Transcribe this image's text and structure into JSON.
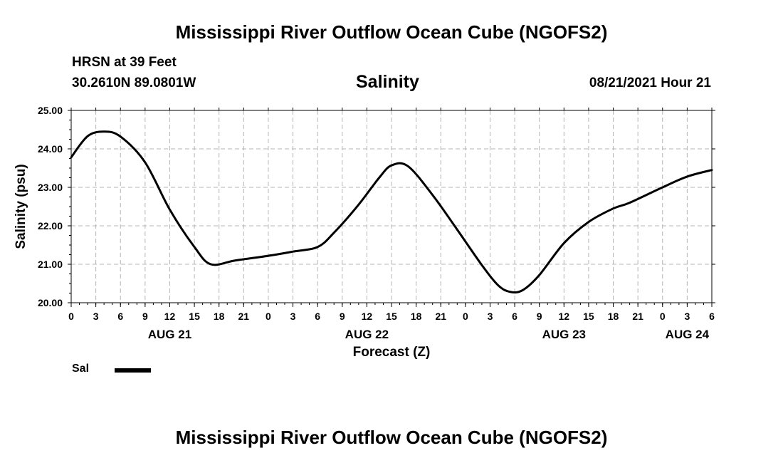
{
  "header": {
    "title": "Mississippi River Outflow Ocean Cube (NGOFS2)",
    "station": "HRSN at 39 Feet",
    "coords": "30.2610N  89.0801W",
    "datetime": "08/21/2021 Hour 21"
  },
  "footer": {
    "title": "Mississippi River Outflow Ocean Cube (NGOFS2)"
  },
  "chart_data": {
    "type": "line",
    "title": "Salinity",
    "ylabel": "Salinity (psu)",
    "xlabel": "Forecast (Z)",
    "ylim": [
      20.0,
      25.0
    ],
    "y_ticks": [
      "20.00",
      "21.00",
      "22.00",
      "23.00",
      "24.00",
      "25.00"
    ],
    "x_range_hours": [
      0,
      78
    ],
    "x_tick_labels": [
      "0",
      "3",
      "6",
      "9",
      "12",
      "15",
      "18",
      "21",
      "0",
      "3",
      "6",
      "9",
      "12",
      "15",
      "18",
      "21",
      "0",
      "3",
      "6",
      "9",
      "12",
      "15",
      "18",
      "21",
      "0",
      "3",
      "6"
    ],
    "date_labels": [
      {
        "label": "AUG 21",
        "hour": 12
      },
      {
        "label": "AUG 22",
        "hour": 36
      },
      {
        "label": "AUG 23",
        "hour": 60
      },
      {
        "label": "AUG 24",
        "hour": 75
      }
    ],
    "grid": true,
    "legend": {
      "position": "bottom-left",
      "entries": [
        "Sal"
      ]
    },
    "series": [
      {
        "name": "Sal",
        "color": "#000000",
        "x": [
          0,
          2,
          4,
          6,
          9,
          12,
          15,
          17,
          20,
          24,
          27,
          30,
          32,
          35,
          37.5,
          39,
          41,
          44,
          47,
          50,
          52,
          53.5,
          55,
          57,
          60,
          63,
          66,
          68,
          72,
          75,
          78
        ],
        "values": [
          23.78,
          24.33,
          24.45,
          24.32,
          23.65,
          22.42,
          21.45,
          21.0,
          21.1,
          21.22,
          21.33,
          21.45,
          21.82,
          22.55,
          23.25,
          23.57,
          23.55,
          22.8,
          21.9,
          20.98,
          20.45,
          20.28,
          20.33,
          20.72,
          21.55,
          22.1,
          22.45,
          22.6,
          23.0,
          23.28,
          23.45
        ]
      }
    ]
  }
}
